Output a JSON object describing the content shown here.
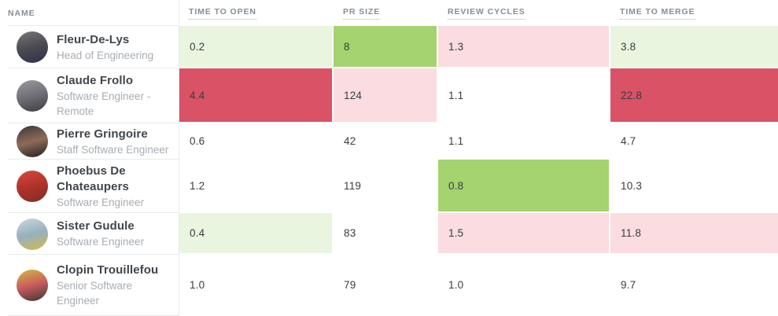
{
  "table": {
    "columns": [
      {
        "key": "name",
        "label": "Name"
      },
      {
        "key": "time_to_open",
        "label": "Time to Open"
      },
      {
        "key": "pr_size",
        "label": "PR Size"
      },
      {
        "key": "review_cycles",
        "label": "Review Cycles"
      },
      {
        "key": "time_to_merge",
        "label": "Time to Merge"
      }
    ],
    "palette": {
      "good-strong": "#a4d36f",
      "good-light": "#eaf5e0",
      "neutral": "#ffffff",
      "bad-light": "#fadce1",
      "bad-strong": "#d95266"
    },
    "rows": [
      {
        "name": "Fleur-De-Lys",
        "role": "Head of Engineering",
        "avatar_colors": [
          "#77777b",
          "#4a4a50",
          "#2e3050"
        ],
        "metrics": [
          {
            "value": "0.2",
            "level": "good-light"
          },
          {
            "value": "8",
            "level": "good-strong"
          },
          {
            "value": "1.3",
            "level": "bad-light"
          },
          {
            "value": "3.8",
            "level": "good-light"
          }
        ]
      },
      {
        "name": "Claude Frollo",
        "role": "Software Engineer - Remote",
        "avatar_colors": [
          "#9a9aa0",
          "#6f6f75",
          "#3c3c42"
        ],
        "metrics": [
          {
            "value": "4.4",
            "level": "bad-strong"
          },
          {
            "value": "124",
            "level": "bad-light"
          },
          {
            "value": "1.1",
            "level": "neutral"
          },
          {
            "value": "22.8",
            "level": "bad-strong"
          }
        ]
      },
      {
        "name": "Pierre Gringoire",
        "role": "Staff Software Engineer",
        "avatar_colors": [
          "#3b3734",
          "#8d6b59",
          "#22201e"
        ],
        "metrics": [
          {
            "value": "0.6",
            "level": "neutral"
          },
          {
            "value": "42",
            "level": "neutral"
          },
          {
            "value": "1.1",
            "level": "neutral"
          },
          {
            "value": "4.7",
            "level": "neutral"
          }
        ]
      },
      {
        "name": "Phoebus De Chateaupers",
        "role": "Software Engineer",
        "avatar_colors": [
          "#d6493f",
          "#b03229",
          "#7e2f27"
        ],
        "metrics": [
          {
            "value": "1.2",
            "level": "neutral"
          },
          {
            "value": "119",
            "level": "neutral"
          },
          {
            "value": "0.8",
            "level": "good-strong"
          },
          {
            "value": "10.3",
            "level": "neutral"
          }
        ]
      },
      {
        "name": "Sister Gudule",
        "role": "Software Engineer",
        "avatar_colors": [
          "#c8d8e0",
          "#97b0bd",
          "#d8b94a"
        ],
        "metrics": [
          {
            "value": "0.4",
            "level": "good-light"
          },
          {
            "value": "83",
            "level": "neutral"
          },
          {
            "value": "1.5",
            "level": "bad-light"
          },
          {
            "value": "11.8",
            "level": "bad-light"
          }
        ]
      },
      {
        "name": "Clopin Trouillefou",
        "role": "Senior Software Engineer",
        "avatar_colors": [
          "#d8b843",
          "#c75b5e",
          "#3a3633"
        ],
        "metrics": [
          {
            "value": "1.0",
            "level": "neutral"
          },
          {
            "value": "79",
            "level": "neutral"
          },
          {
            "value": "1.0",
            "level": "neutral"
          },
          {
            "value": "9.7",
            "level": "neutral"
          }
        ]
      }
    ]
  }
}
